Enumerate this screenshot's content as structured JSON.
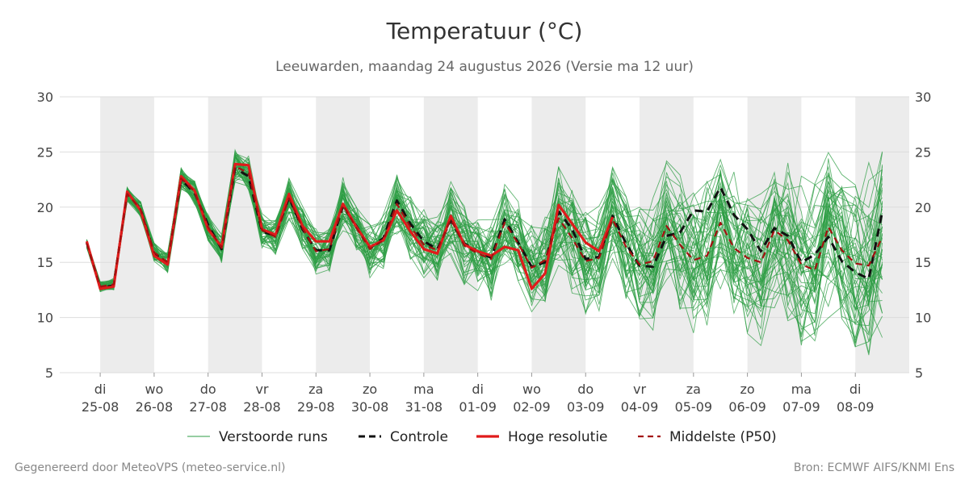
{
  "title": "Temperatuur (°C)",
  "subtitle": "Leeuwarden, maandag 24 augustus 2026 (Versie ma 12 uur)",
  "footer_left": "Gegenereerd door MeteoVPS (meteo-service.nl)",
  "footer_right": "Bron: ECMWF AIFS/KNMI Ens",
  "colors": {
    "ensemble": "#2e9e44",
    "control": "#111111",
    "hires": "#e01b1b",
    "median": "#a31010",
    "band": "#ececec",
    "grid": "#dddddd"
  },
  "chart_data": {
    "type": "line",
    "title": "Temperatuur (°C)",
    "subtitle": "Leeuwarden, maandag 24 augustus 2026 (Versie ma 12 uur)",
    "xlabel": "",
    "ylabel": "",
    "ylim": [
      5,
      30
    ],
    "yticks": [
      5,
      10,
      15,
      20,
      25,
      30
    ],
    "y_axis_both_sides": true,
    "grid": true,
    "legend_position": "bottom",
    "x_domain": [
      -0.75,
      15.0
    ],
    "x_unit": "days after 25-08 00:00",
    "x_ticks": [
      {
        "day": "di",
        "date": "25-08"
      },
      {
        "day": "wo",
        "date": "26-08"
      },
      {
        "day": "do",
        "date": "27-08"
      },
      {
        "day": "vr",
        "date": "28-08"
      },
      {
        "day": "za",
        "date": "29-08"
      },
      {
        "day": "zo",
        "date": "30-08"
      },
      {
        "day": "ma",
        "date": "31-08"
      },
      {
        "day": "di",
        "date": "01-09"
      },
      {
        "day": "wo",
        "date": "02-09"
      },
      {
        "day": "do",
        "date": "03-09"
      },
      {
        "day": "vr",
        "date": "04-09"
      },
      {
        "day": "za",
        "date": "05-09"
      },
      {
        "day": "zo",
        "date": "06-09"
      },
      {
        "day": "ma",
        "date": "07-09"
      },
      {
        "day": "di",
        "date": "08-09"
      }
    ],
    "shaded_days": [
      0,
      2,
      4,
      6,
      8,
      10,
      12,
      14
    ],
    "x_step_days": 0.25,
    "x_start": -0.25,
    "legend": [
      {
        "label": "Verstoorde runs",
        "key": "ensemble"
      },
      {
        "label": "Controle",
        "key": "control"
      },
      {
        "label": "Hoge resolutie",
        "key": "hires"
      },
      {
        "label": "Middelste (P50)",
        "key": "median"
      }
    ],
    "series": [
      {
        "name": "Controle",
        "key": "control",
        "style": "dashed",
        "values": [
          16.8,
          12.7,
          12.9,
          21.3,
          19.8,
          15.8,
          14.9,
          22.5,
          21.3,
          18.4,
          16.2,
          23.5,
          22.8,
          17.8,
          17.4,
          20.9,
          18.0,
          16.1,
          16.1,
          20.1,
          18.3,
          16.3,
          17.2,
          20.6,
          18.5,
          16.9,
          16.2,
          18.8,
          16.7,
          16.0,
          15.4,
          18.9,
          16.8,
          14.6,
          15.0,
          19.6,
          18.0,
          15.3,
          15.5,
          19.2,
          16.7,
          14.7,
          14.6,
          17.4,
          17.7,
          19.7,
          19.6,
          21.8,
          19.3,
          18.0,
          16.0,
          18.1,
          17.4,
          15.0,
          15.7,
          17.3,
          15.1,
          14.1,
          13.5,
          19.6
        ]
      },
      {
        "name": "Hoge resolutie",
        "key": "hires",
        "style": "solid",
        "values": [
          16.9,
          12.6,
          12.8,
          21.4,
          19.7,
          15.6,
          14.8,
          22.8,
          21.5,
          18.0,
          16.4,
          23.9,
          23.8,
          18.0,
          17.5,
          21.2,
          18.3,
          16.9,
          16.9,
          20.3,
          18.2,
          16.4,
          17.0,
          19.7,
          17.8,
          16.2,
          15.8,
          19.2,
          16.6,
          16.0,
          15.6,
          16.4,
          16.1,
          12.6,
          14.0,
          20.2,
          18.5,
          16.8,
          16.0,
          19.1
        ]
      },
      {
        "name": "Middelste (P50)",
        "key": "median",
        "style": "dashed",
        "values": [
          16.7,
          12.8,
          13.0,
          21.2,
          19.8,
          15.9,
          15.0,
          22.6,
          21.4,
          18.2,
          16.3,
          23.7,
          23.1,
          17.9,
          17.3,
          20.8,
          18.1,
          16.0,
          16.2,
          20.2,
          18.1,
          16.2,
          17.0,
          20.3,
          18.2,
          16.6,
          16.1,
          18.9,
          16.5,
          15.8,
          15.3,
          18.6,
          16.7,
          14.5,
          15.2,
          19.0,
          17.2,
          15.1,
          15.4,
          18.9,
          16.4,
          14.8,
          15.1,
          18.3,
          16.6,
          15.2,
          15.6,
          18.6,
          16.3,
          15.4,
          15.0,
          17.9,
          17.0,
          14.8,
          14.3,
          18.2,
          16.1,
          14.9,
          14.7,
          17.3
        ]
      }
    ],
    "ensemble_base": [
      16.7,
      12.8,
      13.0,
      21.2,
      19.8,
      15.9,
      15.0,
      22.6,
      21.4,
      18.2,
      16.3,
      23.7,
      23.1,
      17.9,
      17.3,
      20.8,
      18.1,
      16.0,
      16.2,
      20.2,
      18.1,
      16.2,
      17.0,
      20.3,
      18.2,
      16.6,
      16.1,
      18.9,
      16.5,
      15.8,
      15.3,
      18.6,
      16.7,
      14.5,
      15.2,
      19.0,
      17.2,
      15.1,
      15.4,
      18.9,
      16.4,
      14.8,
      15.1,
      18.3,
      16.6,
      15.2,
      15.6,
      18.6,
      16.3,
      15.4,
      15.0,
      17.9,
      17.0,
      14.8,
      14.3,
      18.2,
      16.1,
      14.9,
      14.7,
      17.3
    ],
    "ensemble_members": 50
  }
}
